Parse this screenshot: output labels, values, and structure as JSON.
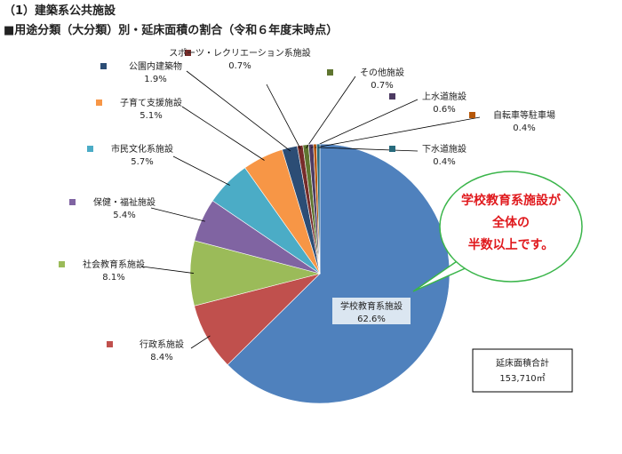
{
  "header": {
    "section": "（1）建築系公共施設",
    "subtitle": "■用途分類（大分類）別・延床面積の割合（令和６年度末時点）"
  },
  "chart_data": {
    "type": "pie",
    "categories": [
      "学校教育系施設",
      "行政系施設",
      "社会教育系施設",
      "保健・福祉施設",
      "市民文化系施設",
      "子育て支援施設",
      "公園内建築物",
      "スポーツ・レクリエーション系施設",
      "その他施設",
      "上水道施設",
      "自転車等駐車場",
      "下水道施設"
    ],
    "values": [
      62.6,
      8.4,
      8.1,
      5.4,
      5.7,
      5.1,
      1.9,
      0.7,
      0.7,
      0.6,
      0.4,
      0.4
    ],
    "value_labels": [
      "62.6%",
      "8.4%",
      "8.1%",
      "5.4%",
      "5.7%",
      "5.1%",
      "1.9%",
      "0.7%",
      "0.7%",
      "0.6%",
      "0.4%",
      "0.4%"
    ],
    "colors": [
      "#4f81bd",
      "#c0504d",
      "#9bbb59",
      "#8064a2",
      "#4bacc6",
      "#f79646",
      "#2c4d75",
      "#772c2a",
      "#5f7530",
      "#4d3b62",
      "#b65708",
      "#276a7c"
    ],
    "annotations": {
      "callout": [
        "学校教育系施設が",
        "全体の",
        "半数以上です。"
      ],
      "total_label": "延床面積合計",
      "total_value": "153,710㎡"
    }
  }
}
